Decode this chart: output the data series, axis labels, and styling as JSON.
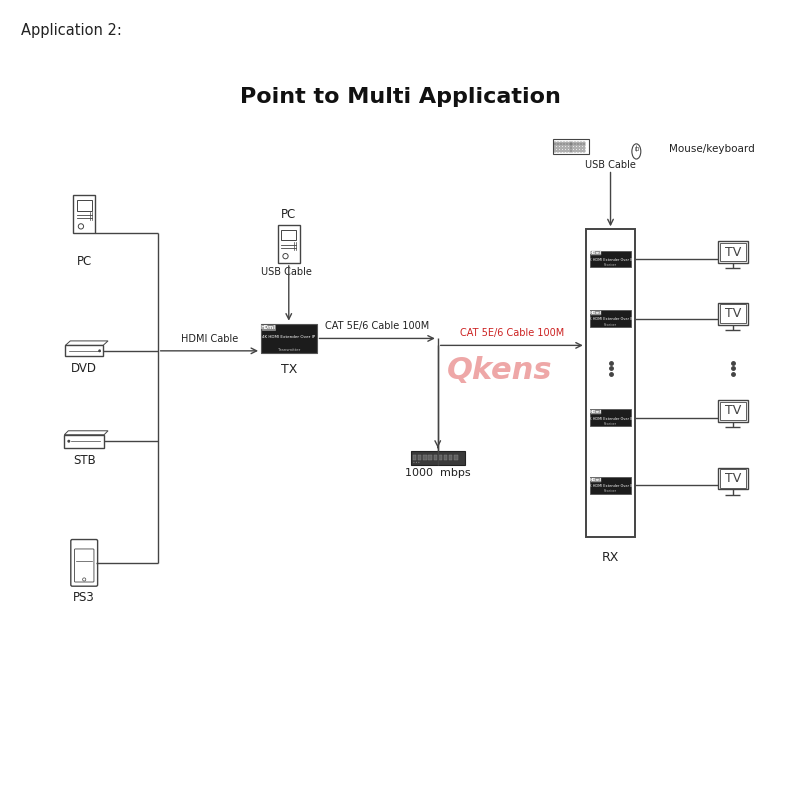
{
  "title": "Point to Multi Application",
  "app_label": "Application 2:",
  "bg_color": "#ffffff",
  "line_color": "#444444",
  "dark_box_color": "#1a1a1a",
  "watermark_color": "#e06060",
  "watermark_text": "Qkens",
  "labels": {
    "pc1": "PC",
    "dvd": "DVD",
    "stb": "STB",
    "ps3": "PS3",
    "pc2": "PC",
    "tx": "TX",
    "rx": "RX",
    "switch": "1000  mbps",
    "hdmi_cable": "HDMI Cable",
    "usb_cable1": "USB Cable",
    "usb_cable2": "USB Cable",
    "cat1": "CAT 5E/6 Cable 100M",
    "cat2": "CAT 5E/6 Cable 100M",
    "mouse_kb": "Mouse/keyboard",
    "tv": "TV"
  }
}
